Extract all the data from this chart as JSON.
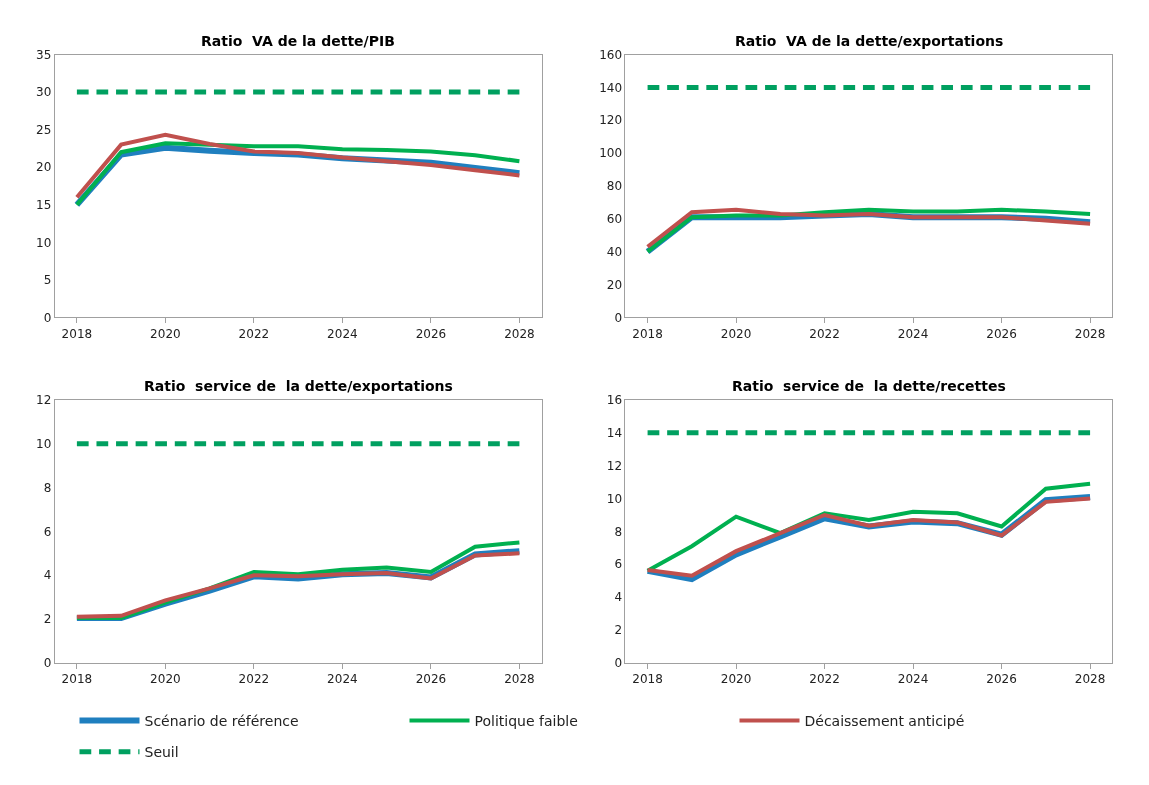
{
  "chart_data": [
    {
      "type": "line",
      "title": "Ratio  VA de la dette/PIB",
      "categories": [
        "2018",
        null,
        "2020",
        null,
        "2022",
        null,
        "2024",
        null,
        "2026",
        null,
        "2028"
      ],
      "ylim": [
        0,
        35
      ],
      "yticks": [
        0,
        5,
        10,
        15,
        20,
        25,
        30,
        35
      ],
      "legend": "bottom",
      "series": [
        {
          "name": "Scénario de référence",
          "color": "#1f7fbf",
          "values": [
            15,
            21.7,
            22.6,
            22.2,
            21.9,
            21.7,
            21.2,
            20.9,
            20.6,
            19.9,
            19.2
          ]
        },
        {
          "name": "Politique faible",
          "color": "#00b050",
          "values": [
            15,
            22,
            23.2,
            23,
            22.8,
            22.8,
            22.4,
            22.3,
            22.1,
            21.6,
            20.8
          ]
        },
        {
          "name": "Décaissement anticipé",
          "color": "#c0504d",
          "values": [
            16,
            23,
            24.3,
            23.1,
            22.1,
            21.9,
            21.3,
            20.8,
            20.3,
            19.6,
            18.9
          ]
        },
        {
          "name": "Seuil",
          "color": "#00a060",
          "line_style": "dashed",
          "values": [
            30,
            30,
            30,
            30,
            30,
            30,
            30,
            30,
            30,
            30,
            30
          ]
        }
      ]
    },
    {
      "type": "line",
      "title": "Ratio  VA de la dette/exportations",
      "categories": [
        "2018",
        null,
        "2020",
        null,
        "2022",
        null,
        "2024",
        null,
        "2026",
        null,
        "2028"
      ],
      "ylim": [
        0,
        160
      ],
      "yticks": [
        0,
        20,
        40,
        60,
        80,
        100,
        120,
        140,
        160
      ],
      "legend": "bottom",
      "series": [
        {
          "name": "Scénario de référence",
          "color": "#1f7fbf",
          "values": [
            40,
            61,
            61,
            61,
            62,
            63,
            61,
            61,
            61,
            60,
            58
          ]
        },
        {
          "name": "Politique faible",
          "color": "#00b050",
          "values": [
            40,
            61,
            62,
            62,
            64,
            65.5,
            64.5,
            64.5,
            65.5,
            64.5,
            63
          ]
        },
        {
          "name": "Décaissement anticipé",
          "color": "#c0504d",
          "values": [
            43,
            64,
            65.5,
            63,
            62,
            63,
            61,
            61,
            61,
            59,
            57
          ]
        },
        {
          "name": "Seuil",
          "color": "#00a060",
          "line_style": "dashed",
          "values": [
            140,
            140,
            140,
            140,
            140,
            140,
            140,
            140,
            140,
            140,
            140
          ]
        }
      ]
    },
    {
      "type": "line",
      "title": "Ratio  service de  la dette/exportations",
      "categories": [
        "2018",
        null,
        "2020",
        null,
        "2022",
        null,
        "2024",
        null,
        "2026",
        null,
        "2028"
      ],
      "ylim": [
        0,
        12
      ],
      "yticks": [
        0,
        2,
        4,
        6,
        8,
        10,
        12
      ],
      "legend": "bottom",
      "series": [
        {
          "name": "Scénario de référence",
          "color": "#1f7fbf",
          "values": [
            2.05,
            2.05,
            2.7,
            3.3,
            3.95,
            3.85,
            4.05,
            4.1,
            3.9,
            4.95,
            5.1
          ]
        },
        {
          "name": "Politique faible",
          "color": "#00b050",
          "values": [
            2.05,
            2.05,
            2.75,
            3.4,
            4.15,
            4.05,
            4.25,
            4.35,
            4.15,
            5.3,
            5.5
          ]
        },
        {
          "name": "Décaissement anticipé",
          "color": "#c0504d",
          "values": [
            2.1,
            2.15,
            2.85,
            3.4,
            4.0,
            3.95,
            4.05,
            4.1,
            3.85,
            4.9,
            5.0
          ]
        },
        {
          "name": "Seuil",
          "color": "#00a060",
          "line_style": "dashed",
          "values": [
            10,
            10,
            10,
            10,
            10,
            10,
            10,
            10,
            10,
            10,
            10
          ]
        }
      ]
    },
    {
      "type": "line",
      "title": "Ratio  service de  la dette/recettes",
      "categories": [
        "2018",
        null,
        "2020",
        null,
        "2022",
        null,
        "2024",
        null,
        "2026",
        null,
        "2028"
      ],
      "ylim": [
        0,
        16
      ],
      "yticks": [
        0,
        2,
        4,
        6,
        8,
        10,
        12,
        14,
        16
      ],
      "legend": "bottom",
      "series": [
        {
          "name": "Scénario de référence",
          "color": "#1f7fbf",
          "values": [
            5.6,
            5.1,
            6.6,
            7.7,
            8.8,
            8.3,
            8.6,
            8.5,
            7.8,
            9.9,
            10.1
          ]
        },
        {
          "name": "Politique faible",
          "color": "#00b050",
          "values": [
            5.6,
            7.1,
            8.9,
            7.9,
            9.1,
            8.7,
            9.2,
            9.1,
            8.3,
            10.6,
            10.9
          ]
        },
        {
          "name": "Décaissement anticipé",
          "color": "#c0504d",
          "values": [
            5.65,
            5.3,
            6.8,
            7.9,
            9.0,
            8.35,
            8.7,
            8.55,
            7.75,
            9.8,
            10.0
          ]
        },
        {
          "name": "Seuil",
          "color": "#00a060",
          "line_style": "dashed",
          "values": [
            14,
            14,
            14,
            14,
            14,
            14,
            14,
            14,
            14,
            14,
            14
          ]
        }
      ]
    }
  ]
}
